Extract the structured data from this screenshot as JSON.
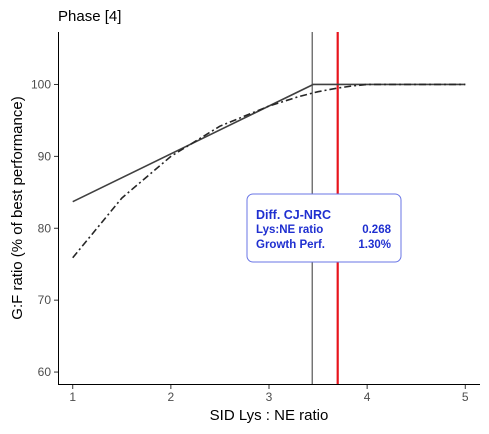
{
  "chart_data": {
    "type": "line",
    "title": "Phase [4]",
    "xlabel": "SID Lys : NE ratio",
    "ylabel": "G:F ratio (% of best performance)",
    "xlim": [
      0.85,
      5.15
    ],
    "ylim": [
      58.2,
      107.3
    ],
    "xticks": [
      1,
      2,
      3,
      4,
      5
    ],
    "yticks": [
      60,
      70,
      80,
      90,
      100
    ],
    "grid": false,
    "series": [
      {
        "style": "solid",
        "color": "#404040",
        "x": [
          1,
          3.45,
          5
        ],
        "y": [
          83.7,
          100,
          100
        ]
      },
      {
        "style": "dashdot",
        "color": "#262626",
        "x": [
          1,
          1.5,
          2,
          2.5,
          3,
          3.3,
          3.5,
          3.7,
          3.85,
          4,
          4.5,
          5
        ],
        "y": [
          75.9,
          84.2,
          90.0,
          94.2,
          97.0,
          98.3,
          99.0,
          99.5,
          99.8,
          100,
          100,
          100
        ]
      }
    ],
    "vlines": [
      {
        "x": 3.44,
        "color": "#333333"
      },
      {
        "x": 3.7,
        "color": "#e8141c"
      }
    ],
    "annotation": {
      "title": "Diff. CJ-NRC",
      "rows": [
        {
          "label": "Lys:NE ratio",
          "value": "0.268"
        },
        {
          "label": "Growth Perf.",
          "value": "1.30%"
        }
      ]
    }
  }
}
